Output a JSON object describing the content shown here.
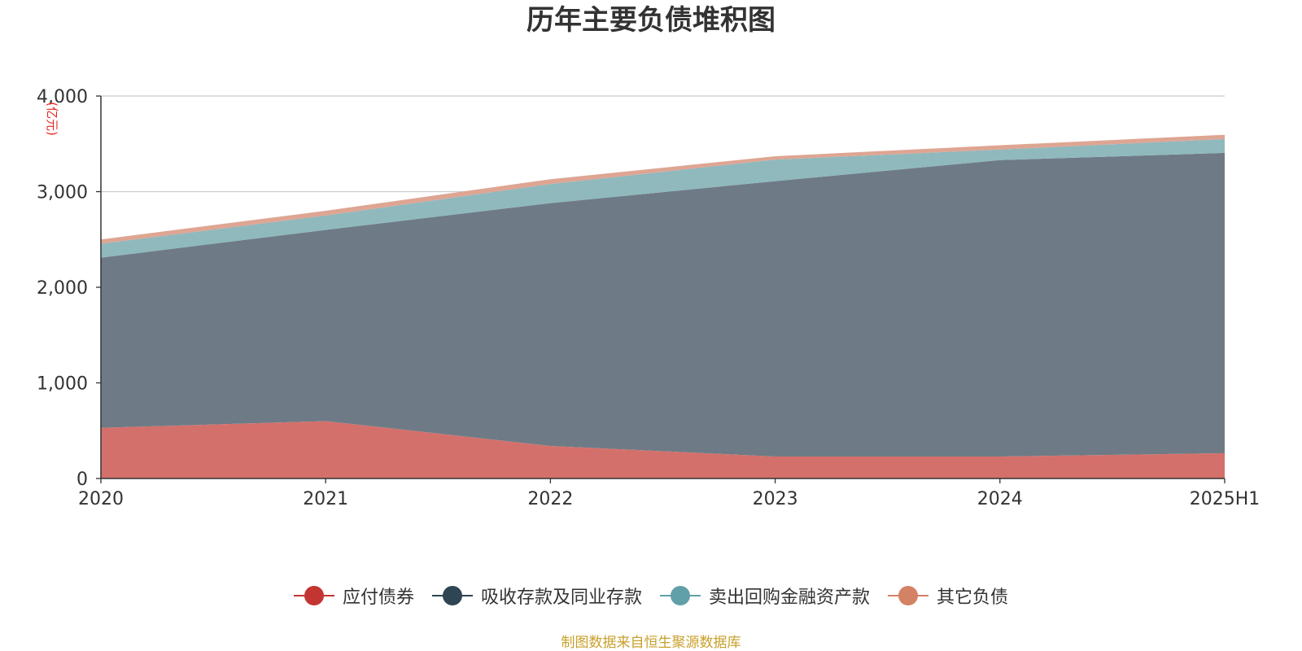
{
  "chart_data": {
    "type": "area",
    "stacked": true,
    "title": "历年主要负债堆积图",
    "ylabel": "亿元",
    "ylabel_display": "(亿元)",
    "categories": [
      "2020",
      "2021",
      "2022",
      "2023",
      "2024",
      "2025H1"
    ],
    "ylim": [
      0,
      4000
    ],
    "yticks": [
      0,
      1000,
      2000,
      3000,
      4000
    ],
    "ytick_labels": [
      "0",
      "1,000",
      "2,000",
      "3,000",
      "4,000"
    ],
    "grid": true,
    "legend_position": "bottom",
    "series": [
      {
        "name": "应付债券",
        "values": [
          530,
          600,
          340,
          230,
          230,
          265
        ],
        "color": "#c23531",
        "fill": "#d4706b"
      },
      {
        "name": "吸收存款及同业存款",
        "values": [
          1780,
          2000,
          2540,
          2880,
          3100,
          3140
        ],
        "color": "#2f4554",
        "fill": "#6e7b86"
      },
      {
        "name": "卖出回购金融资产款",
        "values": [
          145,
          150,
          200,
          225,
          110,
          145
        ],
        "color": "#61a0a8",
        "fill": "#8fb9bd"
      },
      {
        "name": "其它负债",
        "values": [
          45,
          50,
          50,
          35,
          45,
          45
        ],
        "color": "#d48265",
        "fill": "#dea593"
      }
    ]
  },
  "source_note": "制图数据来自恒生聚源数据库"
}
